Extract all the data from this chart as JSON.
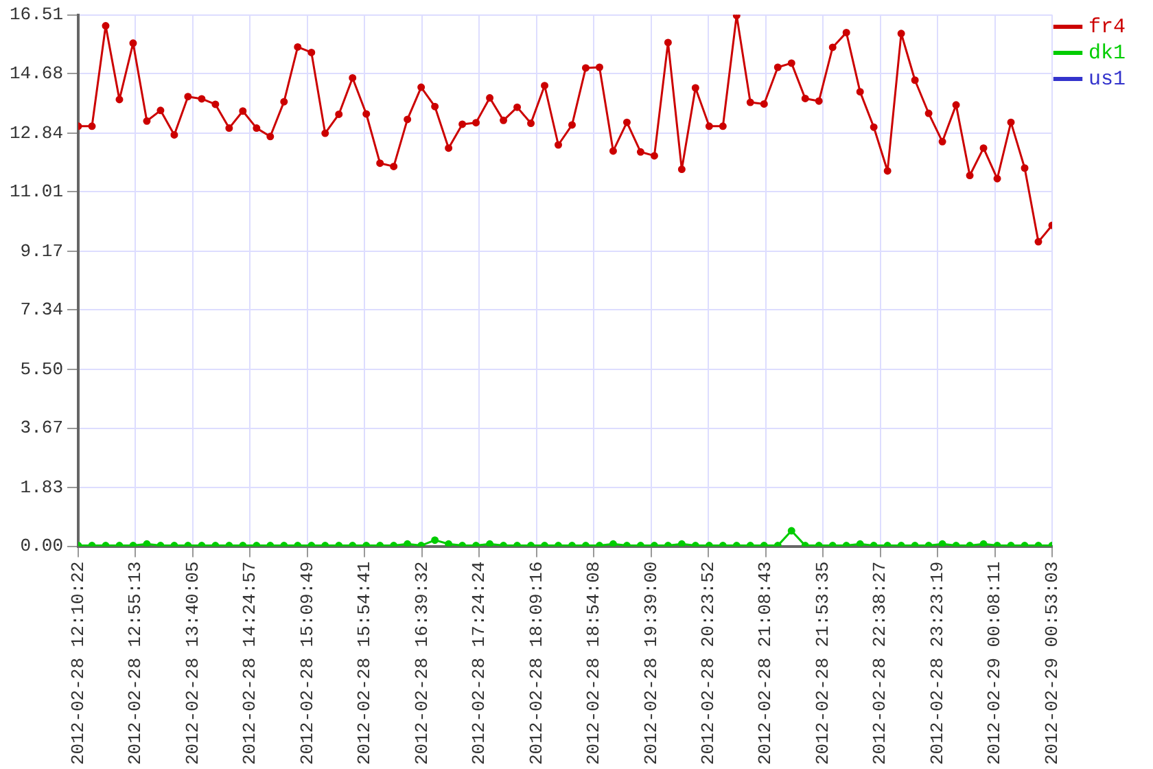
{
  "chart_data": {
    "type": "line",
    "x": [
      "2012-02-28T12:10:22",
      "2012-02-28T12:21:07",
      "2012-02-28T12:31:51",
      "2012-02-28T12:42:36",
      "2012-02-28T12:53:20",
      "2012-02-28T13:04:05",
      "2012-02-28T13:14:49",
      "2012-02-28T13:25:34",
      "2012-02-28T13:36:18",
      "2012-02-28T13:47:03",
      "2012-02-28T13:57:47",
      "2012-02-28T14:08:32",
      "2012-02-28T14:19:16",
      "2012-02-28T14:30:01",
      "2012-02-28T14:40:45",
      "2012-02-28T14:51:30",
      "2012-02-28T15:02:14",
      "2012-02-28T15:12:59",
      "2012-02-28T15:23:43",
      "2012-02-28T15:34:28",
      "2012-02-28T15:45:12",
      "2012-02-28T15:55:57",
      "2012-02-28T16:06:41",
      "2012-02-28T16:17:26",
      "2012-02-28T16:28:10",
      "2012-02-28T16:38:55",
      "2012-02-28T16:49:40",
      "2012-02-28T17:00:24",
      "2012-02-28T17:11:09",
      "2012-02-28T17:21:53",
      "2012-02-28T17:32:38",
      "2012-02-28T17:43:22",
      "2012-02-28T17:54:07",
      "2012-02-28T18:04:51",
      "2012-02-28T18:15:36",
      "2012-02-28T18:26:20",
      "2012-02-28T18:37:05",
      "2012-02-28T18:47:49",
      "2012-02-28T18:58:34",
      "2012-02-28T19:09:18",
      "2012-02-28T19:20:03",
      "2012-02-28T19:30:47",
      "2012-02-28T19:41:32",
      "2012-02-28T19:52:16",
      "2012-02-28T20:03:01",
      "2012-02-28T20:13:45",
      "2012-02-28T20:24:30",
      "2012-02-28T20:35:14",
      "2012-02-28T20:45:59",
      "2012-02-28T20:56:43",
      "2012-02-28T21:07:28",
      "2012-02-28T21:18:13",
      "2012-02-28T21:28:57",
      "2012-02-28T21:39:42",
      "2012-02-28T21:50:26",
      "2012-02-28T22:01:11",
      "2012-02-28T22:11:55",
      "2012-02-28T22:22:40",
      "2012-02-28T22:33:24",
      "2012-02-28T22:44:09",
      "2012-02-28T22:54:53",
      "2012-02-28T23:05:38",
      "2012-02-28T23:16:22",
      "2012-02-28T23:27:07",
      "2012-02-28T23:37:51",
      "2012-02-28T23:48:36",
      "2012-02-28T23:59:20",
      "2012-02-29T00:10:05",
      "2012-02-29T00:20:49",
      "2012-02-29T00:31:34",
      "2012-02-29T00:42:18",
      "2012-02-29T00:53:03"
    ],
    "series": [
      {
        "name": "fr4",
        "color": "#cc0000",
        "values": [
          13.05,
          13.05,
          16.17,
          13.88,
          15.63,
          13.21,
          13.54,
          12.78,
          13.97,
          13.9,
          13.73,
          12.99,
          13.52,
          12.99,
          12.73,
          13.81,
          15.51,
          15.34,
          12.83,
          13.42,
          14.55,
          13.43,
          11.9,
          11.8,
          13.26,
          14.26,
          13.66,
          12.37,
          13.11,
          13.16,
          13.93,
          13.23,
          13.64,
          13.14,
          14.31,
          12.47,
          13.09,
          14.86,
          14.88,
          12.28,
          13.17,
          12.25,
          12.13,
          15.65,
          11.71,
          14.24,
          13.05,
          13.05,
          16.49,
          13.79,
          13.74,
          14.88,
          15.01,
          13.91,
          13.83,
          15.5,
          15.96,
          14.12,
          13.02,
          11.66,
          15.93,
          14.48,
          13.45,
          12.57,
          13.71,
          11.52,
          12.37,
          11.42,
          13.17,
          11.75,
          9.46,
          9.97
        ]
      },
      {
        "name": "dk1",
        "color": "#00cc00",
        "values": [
          0.02,
          0.02,
          0.02,
          0.02,
          0.02,
          0.07,
          0.02,
          0.02,
          0.02,
          0.02,
          0.02,
          0.02,
          0.02,
          0.02,
          0.02,
          0.02,
          0.02,
          0.02,
          0.02,
          0.02,
          0.02,
          0.02,
          0.02,
          0.02,
          0.07,
          0.02,
          0.19,
          0.07,
          0.02,
          0.02,
          0.07,
          0.02,
          0.02,
          0.02,
          0.02,
          0.02,
          0.02,
          0.02,
          0.02,
          0.07,
          0.02,
          0.02,
          0.02,
          0.02,
          0.07,
          0.02,
          0.02,
          0.02,
          0.02,
          0.02,
          0.02,
          0.02,
          0.48,
          0.02,
          0.02,
          0.02,
          0.02,
          0.07,
          0.02,
          0.02,
          0.02,
          0.02,
          0.02,
          0.07,
          0.02,
          0.02,
          0.07,
          0.02,
          0.02,
          0.02,
          0.02,
          0.02
        ]
      },
      {
        "name": "us1",
        "color": "#3333cc",
        "values": [
          null,
          null,
          null,
          null,
          null,
          null,
          null,
          null,
          null,
          null,
          null,
          null,
          null,
          null,
          null,
          null,
          null,
          null,
          null,
          null,
          null,
          null,
          null,
          null,
          null,
          null,
          null,
          null,
          null,
          null,
          null,
          null,
          null,
          null,
          null,
          null,
          null,
          null,
          null,
          null,
          null,
          null,
          null,
          null,
          null,
          null,
          null,
          null,
          null,
          null,
          null,
          null,
          null,
          null,
          null,
          null,
          null,
          null,
          null,
          null,
          null,
          null,
          null,
          null,
          null,
          null,
          null,
          null,
          null,
          null,
          null,
          null
        ]
      }
    ],
    "xlim": [
      "2012-02-28T12:10:22",
      "2012-02-29T00:53:03"
    ],
    "xticks": [
      {
        "value": "2012-02-28T12:10:22",
        "label": "2012-02-28 12:10:22"
      },
      {
        "value": "2012-02-28T12:55:13",
        "label": "2012-02-28 12:55:13"
      },
      {
        "value": "2012-02-28T13:40:05",
        "label": "2012-02-28 13:40:05"
      },
      {
        "value": "2012-02-28T14:24:57",
        "label": "2012-02-28 14:24:57"
      },
      {
        "value": "2012-02-28T15:09:49",
        "label": "2012-02-28 15:09:49"
      },
      {
        "value": "2012-02-28T15:54:41",
        "label": "2012-02-28 15:54:41"
      },
      {
        "value": "2012-02-28T16:39:32",
        "label": "2012-02-28 16:39:32"
      },
      {
        "value": "2012-02-28T17:24:24",
        "label": "2012-02-28 17:24:24"
      },
      {
        "value": "2012-02-28T18:09:16",
        "label": "2012-02-28 18:09:16"
      },
      {
        "value": "2012-02-28T18:54:08",
        "label": "2012-02-28 18:54:08"
      },
      {
        "value": "2012-02-28T19:39:00",
        "label": "2012-02-28 19:39:00"
      },
      {
        "value": "2012-02-28T20:23:52",
        "label": "2012-02-28 20:23:52"
      },
      {
        "value": "2012-02-28T21:08:43",
        "label": "2012-02-28 21:08:43"
      },
      {
        "value": "2012-02-28T21:53:35",
        "label": "2012-02-28 21:53:35"
      },
      {
        "value": "2012-02-28T22:38:27",
        "label": "2012-02-28 22:38:27"
      },
      {
        "value": "2012-02-28T23:23:19",
        "label": "2012-02-28 23:23:19"
      },
      {
        "value": "2012-02-29T00:08:11",
        "label": "2012-02-29 00:08:11"
      },
      {
        "value": "2012-02-29T00:53:03",
        "label": "2012-02-29 00:53:03"
      }
    ],
    "ylim": [
      0,
      16.51
    ],
    "yticks": [
      {
        "value": 0,
        "label": "0.00"
      },
      1.83,
      3.67,
      {
        "value": 5.5,
        "label": "5.50"
      },
      7.34,
      9.17,
      11.01,
      12.84,
      14.68,
      16.51
    ],
    "grid": true,
    "legend": "top right",
    "marker": "circle",
    "line_style": "solid"
  }
}
